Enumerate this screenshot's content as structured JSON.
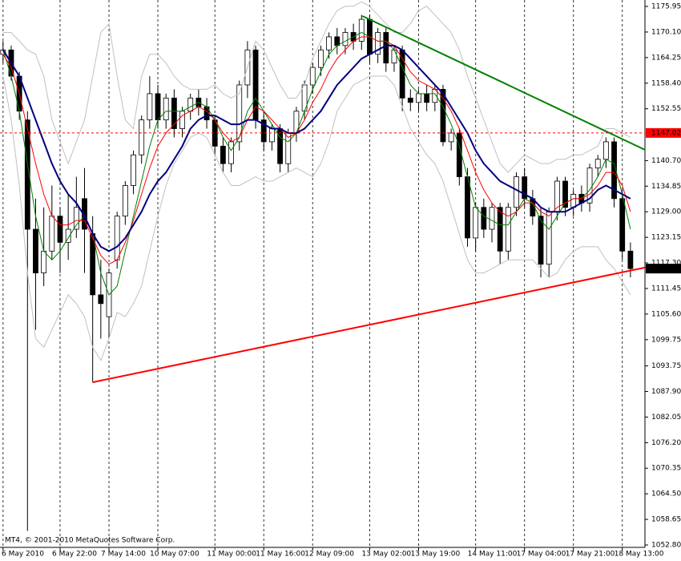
{
  "chart_data": {
    "type": "candlestick",
    "watermark": "MT4, © 2001-2010 MetaQuotes Software Corp.",
    "ylim": [
      1052.25,
      1177.42
    ],
    "yticks": [
      1175.95,
      {
        "value": 1170.1,
        "label": "1170.10"
      },
      1164.25,
      {
        "value": 1158.4,
        "label": "1158.40"
      },
      1152.55,
      {
        "value": 1140.7,
        "label": "1140.70"
      },
      1134.85,
      {
        "value": 1129,
        "label": "1129.00"
      },
      1123.15,
      {
        "value": 1117.3,
        "label": "1117.30"
      },
      1111.45,
      {
        "value": 1105.6,
        "label": "1105.60"
      },
      1099.75,
      1093.75,
      {
        "value": 1087.9,
        "label": "1087.90"
      },
      1082.05,
      {
        "value": 1076.2,
        "label": "1076.20"
      },
      1070.35,
      {
        "value": 1064.5,
        "label": "1064.50"
      },
      1058.65,
      {
        "value": 1052.8,
        "label": "1052.80"
      }
    ],
    "xticks": [
      {
        "value": 0,
        "label": "6 May 2010"
      },
      {
        "value": 7,
        "label": "6 May 22:00"
      },
      {
        "value": 13,
        "label": "7 May 14:00"
      },
      {
        "value": 19,
        "label": "10 May 07:00"
      },
      {
        "value": 26,
        "label": "11 May 00:00"
      },
      {
        "value": 32,
        "label": "11 May 16:00"
      },
      {
        "value": 38,
        "label": "12 May 09:00"
      },
      {
        "value": 45,
        "label": "13 May 02:00"
      },
      {
        "value": 51,
        "label": "13 May 19:00"
      },
      {
        "value": 58,
        "label": "14 May 11:00"
      },
      {
        "value": 64,
        "label": "17 May 04:00"
      },
      {
        "value": 70,
        "label": "17 May 21:00"
      },
      {
        "value": 76,
        "label": "18 May 13:00"
      }
    ],
    "grid": "x",
    "candle_colors": {
      "up": "#ffffff",
      "down": "#000000",
      "outline": "#000000"
    },
    "open": [
      1165,
      1166,
      1160,
      1150,
      1125,
      1115,
      1120,
      1128,
      1122,
      1125,
      1132,
      1124,
      1110,
      1105,
      1118,
      1128,
      1135,
      1142,
      1150,
      1156,
      1150,
      1155,
      1148,
      1152,
      1155,
      1153,
      1150,
      1144,
      1140,
      1145,
      1158,
      1166,
      1150,
      1145,
      1148,
      1140,
      1147,
      1152,
      1158,
      1162,
      1166,
      1169,
      1167,
      1170,
      1168,
      1173,
      1165,
      1170,
      1163,
      1166,
      1155,
      1154,
      1156,
      1154,
      1157,
      1145,
      1147,
      1137,
      1123,
      1130,
      1125,
      1130,
      1120,
      1130,
      1137,
      1132,
      1128,
      1117,
      1129,
      1136,
      1130,
      1133,
      1131,
      1139,
      1141,
      1145,
      1132,
      1120
    ],
    "high": [
      1168,
      1167,
      1161,
      1152,
      1132,
      1130,
      1135,
      1130,
      1133,
      1137,
      1139,
      1128,
      1118,
      1116,
      1129,
      1136,
      1143,
      1151,
      1160,
      1158,
      1156,
      1157,
      1153,
      1156,
      1157,
      1155,
      1151,
      1146,
      1146,
      1159,
      1168,
      1167,
      1152,
      1149,
      1149,
      1148,
      1153,
      1159,
      1163,
      1167,
      1170,
      1171,
      1171,
      1172,
      1174,
      1174,
      1171,
      1171,
      1167,
      1167,
      1157,
      1157,
      1158,
      1158,
      1158,
      1148,
      1148,
      1139,
      1131,
      1132,
      1131,
      1131,
      1131,
      1138,
      1139,
      1134,
      1130,
      1130,
      1137,
      1137,
      1134,
      1135,
      1140,
      1142,
      1146,
      1146,
      1134,
      1122
    ],
    "low": [
      1163,
      1159,
      1150,
      1056,
      1102,
      1112,
      1118,
      1115,
      1118,
      1123,
      1115,
      1090,
      1100,
      1100,
      1116,
      1126,
      1133,
      1140,
      1148,
      1148,
      1148,
      1146,
      1146,
      1150,
      1151,
      1148,
      1142,
      1138,
      1138,
      1143,
      1155,
      1148,
      1143,
      1143,
      1138,
      1138,
      1145,
      1150,
      1156,
      1160,
      1164,
      1165,
      1165,
      1166,
      1166,
      1163,
      1163,
      1161,
      1161,
      1152,
      1152,
      1152,
      1152,
      1152,
      1144,
      1143,
      1135,
      1121,
      1120,
      1123,
      1122,
      1117,
      1118,
      1128,
      1130,
      1126,
      1114,
      1114,
      1127,
      1128,
      1128,
      1129,
      1129,
      1137,
      1139,
      1130,
      1118,
      1114
    ],
    "close": [
      1166,
      1160,
      1152,
      1125,
      1115,
      1120,
      1128,
      1122,
      1125,
      1130,
      1125,
      1110,
      1108,
      1115,
      1128,
      1135,
      1142,
      1150,
      1156,
      1150,
      1155,
      1148,
      1152,
      1155,
      1153,
      1150,
      1144,
      1140,
      1145,
      1158,
      1166,
      1150,
      1145,
      1148,
      1140,
      1147,
      1152,
      1158,
      1162,
      1166,
      1169,
      1167,
      1170,
      1168,
      1173,
      1165,
      1170,
      1163,
      1166,
      1155,
      1154,
      1156,
      1154,
      1157,
      1145,
      1147,
      1137,
      1123,
      1130,
      1125,
      1130,
      1120,
      1130,
      1137,
      1132,
      1128,
      1117,
      1129,
      1136,
      1130,
      1133,
      1131,
      1139,
      1141,
      1145,
      1132,
      1120,
      1116
    ],
    "series": [
      {
        "color": "#c0c0c0",
        "width": 1,
        "values": [
          1170,
          1170,
          1168,
          1166,
          1165,
          1160,
          1150,
          1145,
          1140,
          1145,
          1150,
          1160,
          1170,
          1172,
          1160,
          1150,
          1148,
          1160,
          1165,
          1165,
          1163,
          1160,
          1158,
          1157,
          1157,
          1157,
          1158,
          1156,
          1155,
          1156,
          1162,
          1168,
          1166,
          1162,
          1158,
          1155,
          1155,
          1158,
          1164,
          1168,
          1172,
          1175,
          1176,
          1176,
          1177,
          1176,
          1174,
          1172,
          1170,
          1170,
          1172,
          1175,
          1176,
          1174,
          1172,
          1170,
          1166,
          1160,
          1155,
          1150,
          1145,
          1140,
          1138,
          1140,
          1142,
          1141,
          1140,
          1140,
          1141,
          1141,
          1142,
          1142,
          1143,
          1144,
          1148,
          1148,
          1147,
          1146
        ]
      },
      {
        "color": "#c0c0c0",
        "width": 1,
        "values": [
          1160,
          1150,
          1135,
          1115,
          1100,
          1098,
          1102,
          1106,
          1110,
          1108,
          1105,
          1098,
          1095,
          1100,
          1106,
          1105,
          1108,
          1112,
          1120,
          1128,
          1135,
          1140,
          1143,
          1146,
          1147,
          1146,
          1142,
          1138,
          1135,
          1135,
          1136,
          1137,
          1136,
          1136,
          1137,
          1138,
          1139,
          1138,
          1137,
          1140,
          1145,
          1152,
          1155,
          1158,
          1159,
          1160,
          1160,
          1160,
          1158,
          1153,
          1148,
          1145,
          1142,
          1140,
          1136,
          1130,
          1124,
          1118,
          1115,
          1115,
          1116,
          1117,
          1118,
          1118,
          1118,
          1118,
          1116,
          1114,
          1115,
          1118,
          1120,
          1121,
          1121,
          1121,
          1118,
          1116,
          1113,
          1110
        ]
      },
      {
        "color": "#008000",
        "width": 1,
        "values": [
          1166,
          1160,
          1152,
          1140,
          1128,
          1120,
          1118,
          1120,
          1123,
          1126,
          1128,
          1124,
          1115,
          1110,
          1112,
          1120,
          1128,
          1136,
          1144,
          1150,
          1152,
          1152,
          1152,
          1153,
          1154,
          1153,
          1150,
          1146,
          1143,
          1146,
          1152,
          1155,
          1152,
          1149,
          1146,
          1145,
          1147,
          1152,
          1157,
          1161,
          1165,
          1167,
          1168,
          1169,
          1170,
          1169,
          1168,
          1168,
          1166,
          1162,
          1158,
          1156,
          1156,
          1156,
          1153,
          1149,
          1144,
          1137,
          1130,
          1128,
          1127,
          1126,
          1126,
          1129,
          1132,
          1131,
          1127,
          1125,
          1128,
          1131,
          1132,
          1132,
          1134,
          1137,
          1141,
          1140,
          1133,
          1125
        ]
      },
      {
        "color": "#ff0000",
        "width": 1,
        "values": [
          1165,
          1162,
          1156,
          1148,
          1140,
          1133,
          1128,
          1126,
          1126,
          1127,
          1127,
          1123,
          1119,
          1117,
          1118,
          1122,
          1127,
          1133,
          1139,
          1144,
          1147,
          1149,
          1151,
          1152,
          1153,
          1152,
          1150,
          1147,
          1145,
          1146,
          1150,
          1153,
          1152,
          1150,
          1148,
          1146,
          1147,
          1150,
          1154,
          1157,
          1161,
          1164,
          1166,
          1168,
          1169,
          1169,
          1168,
          1168,
          1167,
          1164,
          1161,
          1159,
          1158,
          1157,
          1155,
          1152,
          1148,
          1143,
          1138,
          1134,
          1131,
          1129,
          1128,
          1129,
          1131,
          1131,
          1129,
          1128,
          1130,
          1131,
          1132,
          1132,
          1133,
          1135,
          1138,
          1138,
          1135,
          1129
        ]
      },
      {
        "color": "#000080",
        "width": 2,
        "values": [
          1166,
          1163,
          1160,
          1155,
          1150,
          1145,
          1140,
          1136,
          1133,
          1131,
          1128,
          1124,
          1121,
          1120,
          1121,
          1123,
          1126,
          1129,
          1133,
          1136,
          1138,
          1141,
          1144,
          1148,
          1150,
          1151,
          1151,
          1150,
          1149,
          1149,
          1150,
          1150,
          1149,
          1148,
          1148,
          1147,
          1147,
          1148,
          1150,
          1152,
          1155,
          1158,
          1160,
          1162,
          1164,
          1165,
          1166,
          1167,
          1167,
          1166,
          1164,
          1162,
          1160,
          1158,
          1156,
          1153,
          1150,
          1147,
          1143,
          1140,
          1138,
          1136,
          1135,
          1134,
          1133,
          1132,
          1130,
          1129,
          1129,
          1129,
          1130,
          1131,
          1132,
          1134,
          1135,
          1134,
          1133,
          1132
        ]
      }
    ],
    "trendlines": [
      {
        "color": "#008000",
        "x": [
          44.1,
          78.8
        ],
        "y": [
          1173.76,
          1143.15
        ]
      },
      {
        "color": "#ff0000",
        "x": [
          11,
          79.2
        ],
        "y": [
          1090,
          1116.4
        ]
      }
    ],
    "hline": {
      "value": 1147.02,
      "label": "1147.02",
      "color": "#ff0000"
    },
    "last_price": {
      "value": 1116,
      "label": "1116.00"
    }
  }
}
